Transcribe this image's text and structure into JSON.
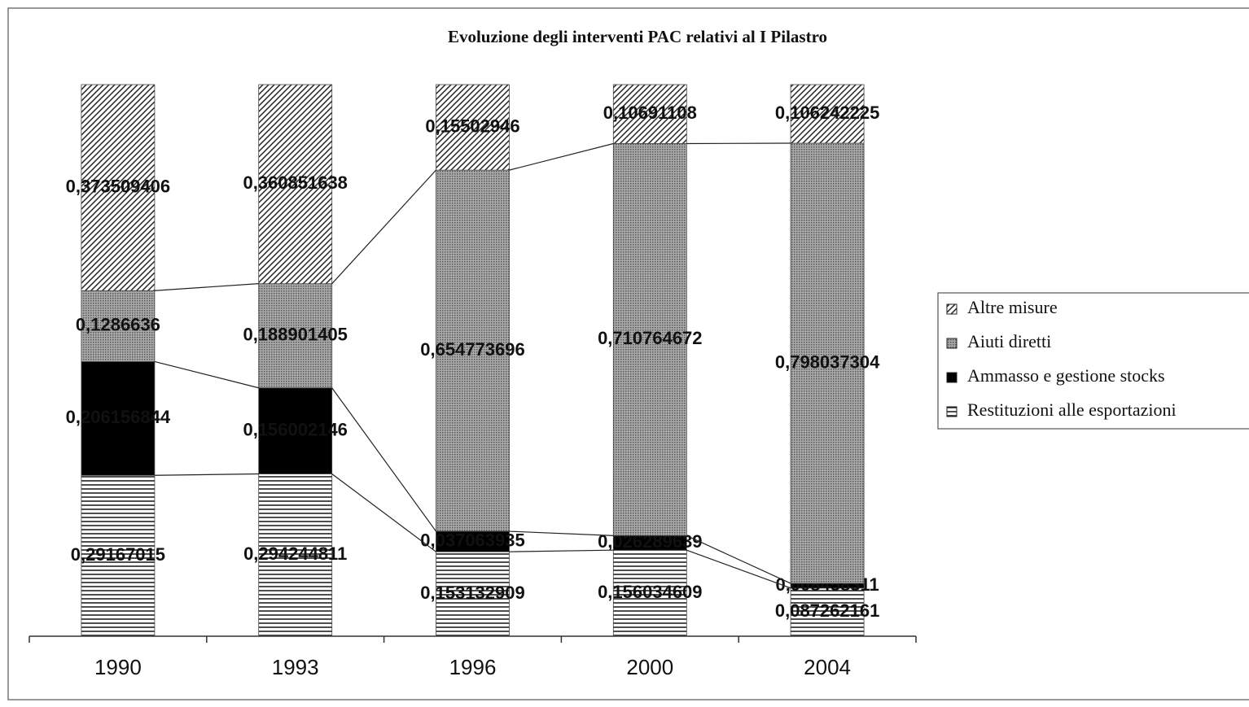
{
  "chart_data": {
    "type": "stacked_bar_100",
    "title": "Evoluzione degli interventi PAC relativi al I Pilastro",
    "categories": [
      "1990",
      "1993",
      "1996",
      "2000",
      "2004"
    ],
    "series": [
      {
        "name": "Restituzioni alle esportazioni",
        "color": "#222222",
        "pattern": "horizontal",
        "values": [
          0.29167015,
          0.294244811,
          0.153132909,
          0.156034609,
          0.087262161
        ],
        "value_labels": [
          "0,29167015",
          "0,294244811",
          "0,153132909",
          "0,156034609",
          "0,087262161"
        ]
      },
      {
        "name": "Ammasso e gestione stocks",
        "color": "#000000",
        "pattern": "solid",
        "values": [
          0.206156844,
          0.156002146,
          0.037063935,
          0.026289639,
          0.008458311
        ],
        "value_labels": [
          "0,206156844",
          "0,156002146",
          "0,037063935",
          "0,026289639",
          "0,008458311"
        ]
      },
      {
        "name": "Aiuti diretti",
        "color": "#555555",
        "pattern": "dots",
        "values": [
          0.1286636,
          0.188901405,
          0.654773696,
          0.710764672,
          0.798037304
        ],
        "value_labels": [
          "0,1286636",
          "0,188901405",
          "0,654773696",
          "0,710764672",
          "0,798037304"
        ]
      },
      {
        "name": "Altre misure",
        "color": "#222222",
        "pattern": "diagonal",
        "values": [
          0.373509406,
          0.360851638,
          0.15502946,
          0.10691108,
          0.106242225
        ],
        "value_labels": [
          "0,373509406",
          "0,360851638",
          "0,15502946",
          "0,10691108",
          "0,106242225"
        ]
      }
    ]
  }
}
